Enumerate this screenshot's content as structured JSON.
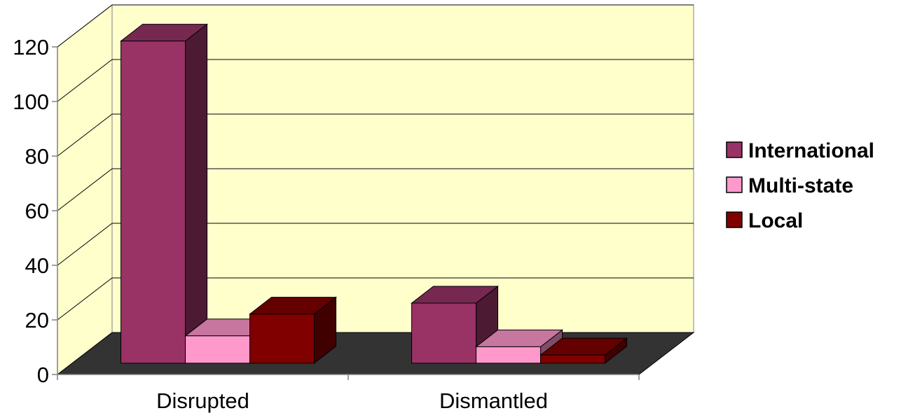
{
  "chart_data": {
    "type": "bar",
    "title": "",
    "xlabel": "",
    "ylabel": "",
    "categories": [
      "Disrupted",
      "Dismantled"
    ],
    "series": [
      {
        "name": "International",
        "values": [
          118,
          22
        ],
        "color": "#993366"
      },
      {
        "name": "Multi-state",
        "values": [
          10,
          6
        ],
        "color": "#FF99CC"
      },
      {
        "name": "Local",
        "values": [
          18,
          3
        ],
        "color": "#800000"
      }
    ],
    "ylim": [
      0,
      120
    ],
    "yticks": [
      "0",
      "20",
      "40",
      "60",
      "80",
      "100",
      "120"
    ],
    "grid": true,
    "legend": "right",
    "style": "3d-clustered-column",
    "wall_color": "#FFFFCC",
    "floor_color": "#333333"
  }
}
